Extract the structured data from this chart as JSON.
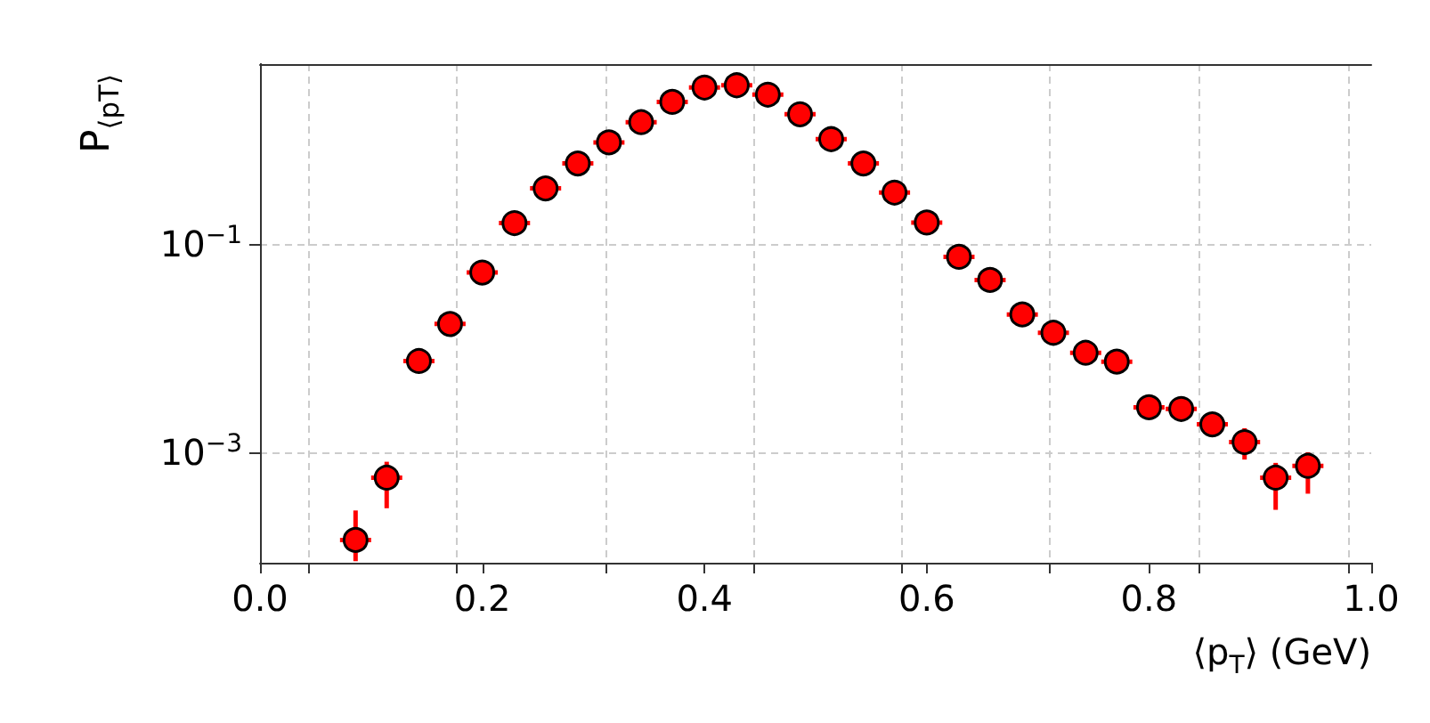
{
  "chart_data": {
    "type": "scatter",
    "ylabel": "P$_{⟨p}$$_{T}$$_{⟩}$",
    "xlabel": "⟨p$_{T}$⟩ (GeV)",
    "xlim": [
      0,
      1
    ],
    "xticks": [
      {
        "value": 0,
        "label": "0.0"
      },
      0.2,
      0.4,
      0.6,
      0.8,
      {
        "value": 1,
        "label": "1.0"
      },
      {
        "value": 0.043,
        "label": null
      },
      {
        "value": 0.177,
        "label": null
      },
      {
        "value": 0.311,
        "label": null
      },
      {
        "value": 0.444,
        "label": null
      },
      {
        "value": 0.578,
        "label": null
      },
      {
        "value": 0.711,
        "label": null
      },
      {
        "value": 0.845,
        "label": null
      },
      {
        "value": 0.979,
        "label": null
      }
    ],
    "ylim": [
      8.7e-05,
      5.3
    ],
    "yticks": [
      {
        "value": 0.1,
        "label": "10$^{−1}$"
      },
      {
        "value": 0.001,
        "label": "10$^{−3}$"
      }
    ],
    "log": "y",
    "grid": true,
    "marker": "circle",
    "series": [
      {
        "color": "#ff0000",
        "x": [
          0.086,
          0.114,
          0.143,
          0.171,
          0.2,
          0.229,
          0.257,
          0.286,
          0.314,
          0.343,
          0.371,
          0.4,
          0.429,
          0.457,
          0.486,
          0.514,
          0.543,
          0.571,
          0.6,
          0.629,
          0.657,
          0.686,
          0.714,
          0.743,
          0.771,
          0.8,
          0.829,
          0.857,
          0.886,
          0.914,
          0.943
        ],
        "values": [
          0.000144,
          0.00057,
          0.0075,
          0.017,
          0.053,
          0.158,
          0.34,
          0.59,
          0.94,
          1.47,
          2.3,
          3.16,
          3.32,
          2.7,
          1.75,
          1.01,
          0.59,
          0.31,
          0.16,
          0.075,
          0.045,
          0.021,
          0.014,
          0.009,
          0.0074,
          0.0027,
          0.0026,
          0.00185,
          0.00125,
          0.00057,
          0.00074
        ],
        "errors": [
          [
            9e-05,
            0.000276
          ],
          [
            0.00029,
            0.00081
          ],
          null,
          null,
          null,
          null,
          null,
          null,
          null,
          null,
          null,
          null,
          null,
          null,
          null,
          null,
          null,
          null,
          null,
          null,
          null,
          null,
          null,
          null,
          null,
          null,
          null,
          null,
          [
            0.00085,
            0.0017
          ],
          [
            0.00028,
            0.00079
          ],
          [
            0.0004,
            0.001
          ]
        ],
        "xerrors": [
          0.014,
          0.014,
          0.014,
          0.014,
          0.014,
          0.014,
          0.014,
          0.014,
          0.014,
          0.014,
          0.014,
          0.014,
          0.014,
          0.014,
          0.014,
          0.014,
          0.014,
          0.014,
          0.014,
          0.014,
          0.014,
          0.014,
          0.014,
          0.014,
          0.014,
          0.014,
          0.014,
          0.014,
          0.014,
          0.014,
          0.014
        ]
      }
    ]
  }
}
